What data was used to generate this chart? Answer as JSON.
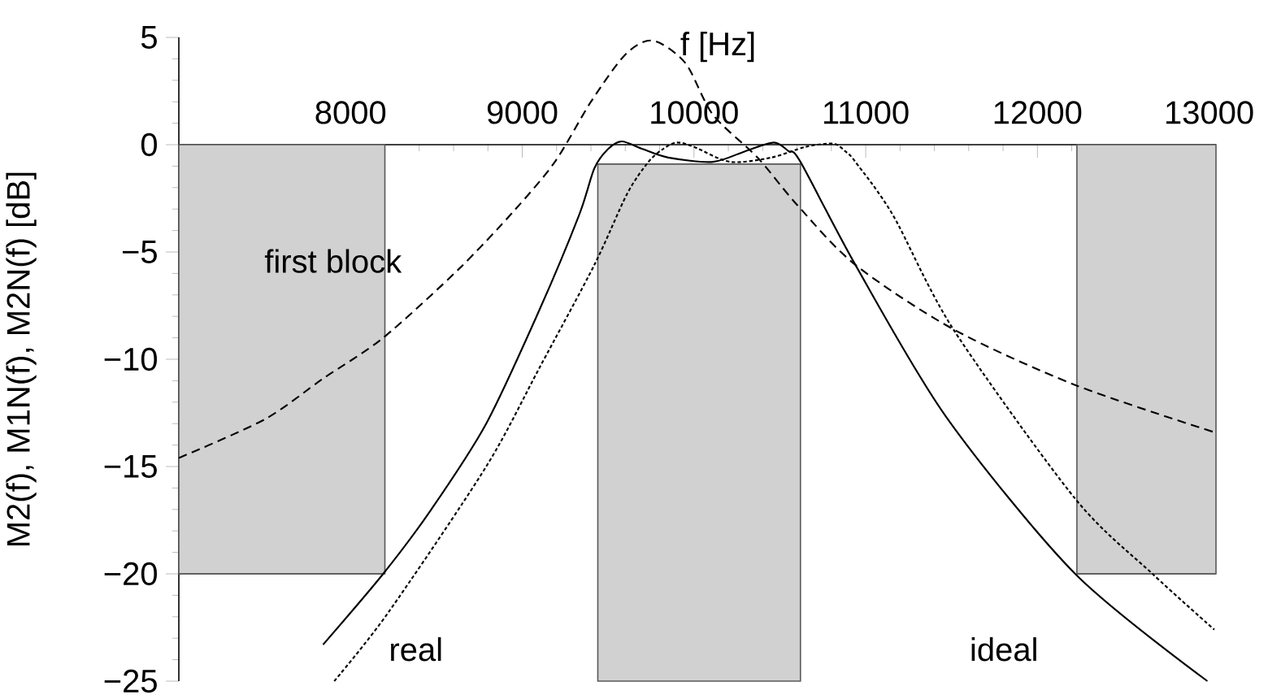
{
  "chart_data": {
    "type": "line",
    "xlabel": "f [Hz]",
    "ylabel": "M2(f), M1N(f), M2N(f) [dB]",
    "xlim": [
      7000,
      13040
    ],
    "ylim": [
      -25,
      5
    ],
    "xticks": [
      8000,
      9000,
      10000,
      11000,
      12000,
      13000
    ],
    "yticks": [
      {
        "value": -25,
        "label": "−25"
      },
      {
        "value": -20,
        "label": "−20"
      },
      {
        "value": -15,
        "label": "−15"
      },
      {
        "value": -10,
        "label": "−10"
      },
      {
        "value": -5,
        "label": "−5"
      },
      0,
      5
    ],
    "series": [
      {
        "color": "#595959",
        "x": [
          7000,
          8200
        ],
        "values": [
          -20,
          -20
        ],
        "lower": [
          -20,
          -20
        ],
        "upper": [
          0,
          0
        ]
      },
      {
        "color": "#595959",
        "x": [
          9440,
          10620
        ],
        "values": [
          -0.9,
          -0.9
        ],
        "lower": [
          -25,
          -25
        ],
        "upper": [
          -0.9,
          -0.9
        ]
      },
      {
        "color": "#595959",
        "x": [
          12230,
          13040
        ],
        "values": [
          -20,
          -20
        ],
        "lower": [
          -20,
          -20
        ],
        "upper": [
          0,
          0
        ]
      },
      {
        "color": "#000000",
        "line_style": "dashed",
        "x": [
          7000,
          7500,
          7840,
          8190,
          8630,
          8950,
          9190,
          9400,
          9600,
          9760,
          9950,
          10110,
          10370,
          10600,
          10940,
          11510,
          12220,
          13030
        ],
        "values": [
          -14.6,
          -12.8,
          -10.9,
          -9.0,
          -5.8,
          -3.1,
          -0.8,
          2.0,
          4.2,
          4.85,
          3.8,
          1.4,
          -0.6,
          -2.8,
          -5.6,
          -8.6,
          -11.2,
          -13.4
        ]
      },
      {
        "color": "#000000",
        "line_style": "solid",
        "x": [
          7840,
          8190,
          8470,
          8790,
          9100,
          9330,
          9420,
          9500,
          9580,
          9700,
          9850,
          10110,
          10300,
          10465,
          10550,
          10620,
          10940,
          11470,
          12220,
          12990
        ],
        "values": [
          -23.3,
          -20.0,
          -17.0,
          -13.0,
          -7.7,
          -3.3,
          -1.1,
          -0.2,
          0.15,
          -0.2,
          -0.6,
          -0.8,
          -0.3,
          0.1,
          -0.3,
          -0.8,
          -5.6,
          -12.7,
          -20.0,
          -25.0
        ]
      },
      {
        "color": "#000000",
        "line_style": "dotted",
        "x": [
          7905,
          8220,
          8790,
          9100,
          9420,
          9610,
          9735,
          9820,
          9900,
          10000,
          10210,
          10450,
          10650,
          10810,
          10880,
          10940,
          11160,
          11510,
          12220,
          12670,
          13030
        ],
        "values": [
          -25.0,
          -21.8,
          -15.0,
          -10.4,
          -5.6,
          -2.3,
          -0.8,
          -0.2,
          0.1,
          -0.1,
          -0.8,
          -0.6,
          -0.1,
          0.05,
          -0.3,
          -0.8,
          -3.3,
          -8.6,
          -16.5,
          -20.0,
          -22.6
        ]
      }
    ],
    "annotations": [
      "first block",
      "real",
      "ideal"
    ]
  }
}
